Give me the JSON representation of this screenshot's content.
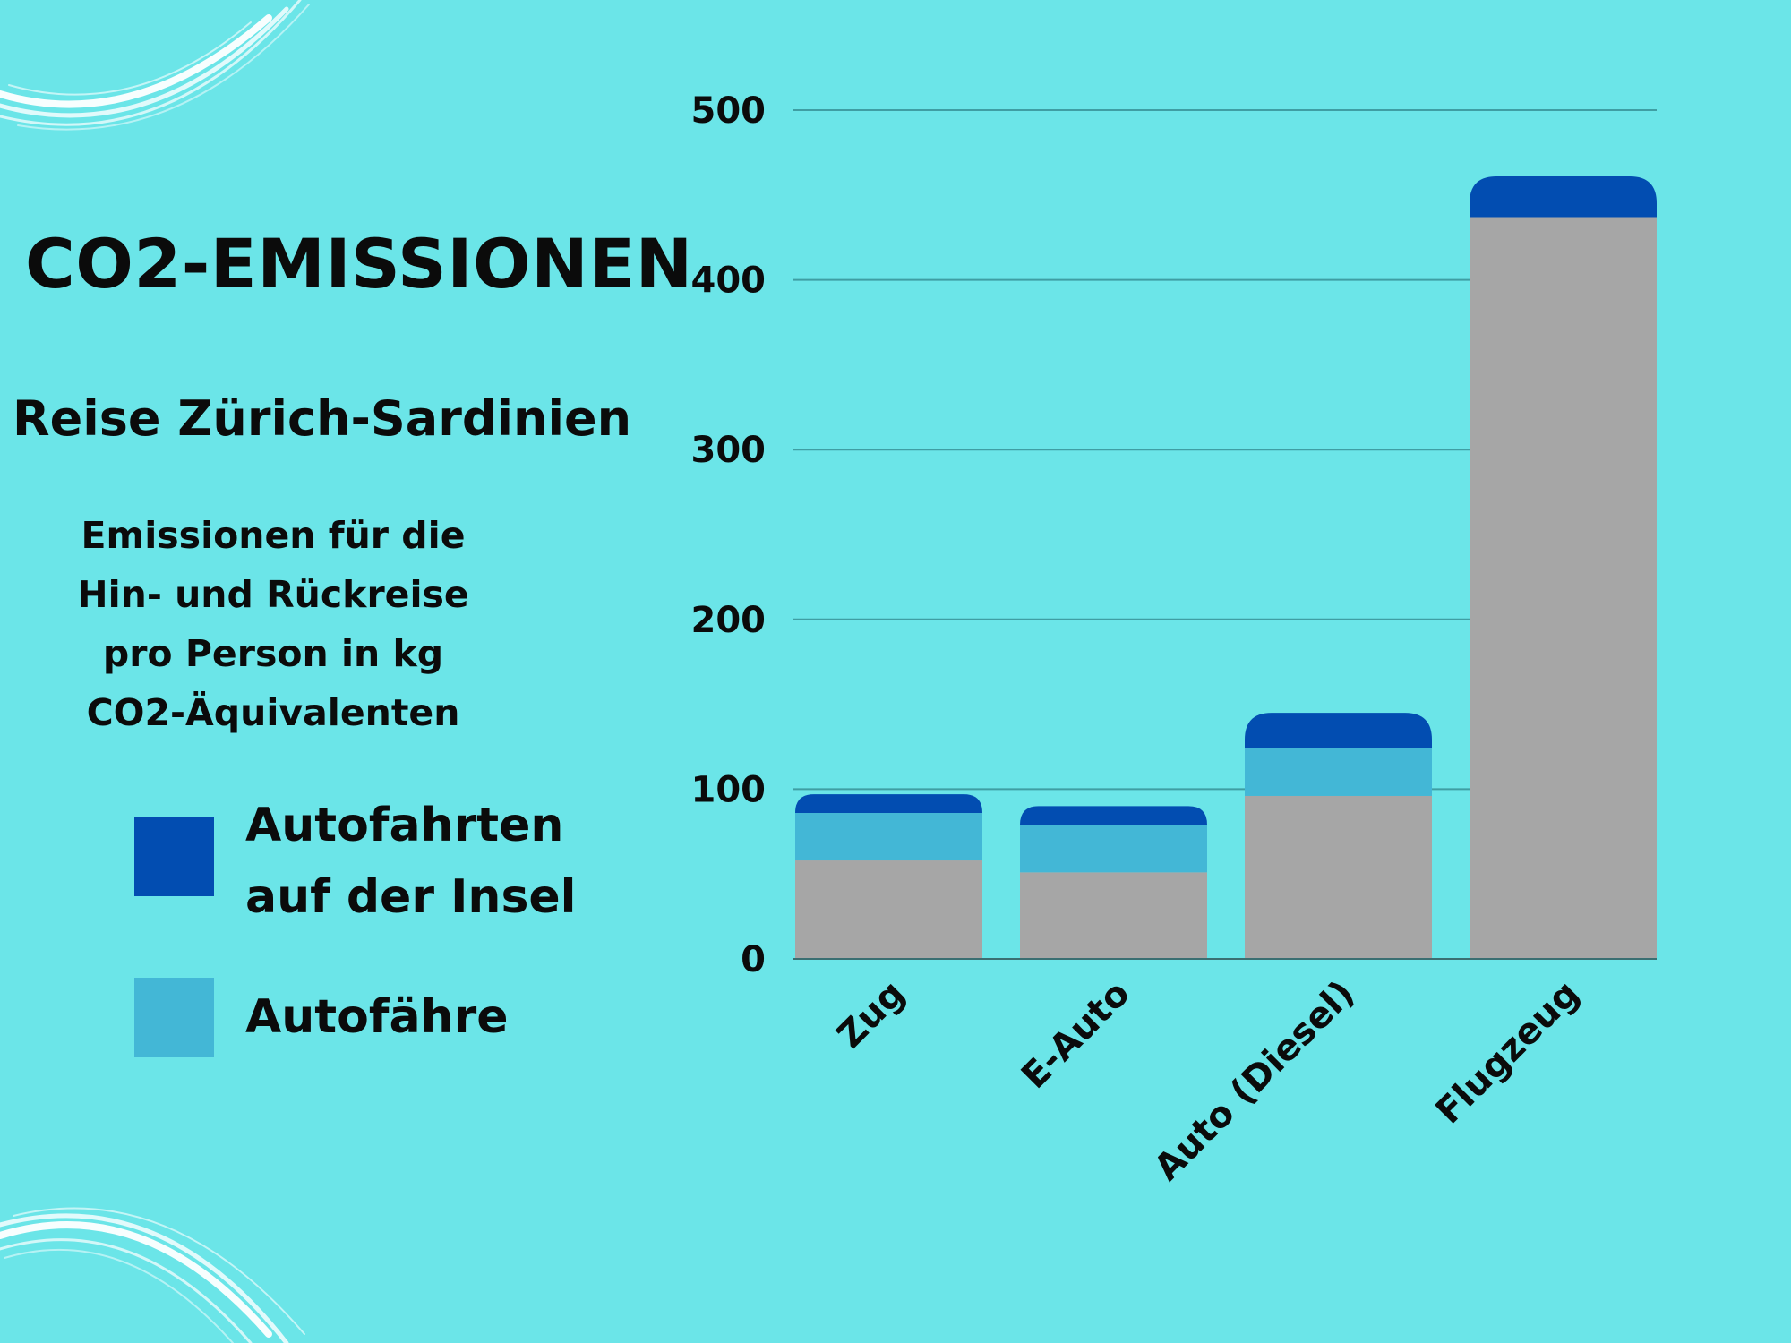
{
  "title": "CO2-EMISSIONEN",
  "subtitle": "Reise Zürich-Sardinien",
  "description_lines": [
    "Emissionen für die",
    "Hin- und Rückreise",
    "pro Person in kg",
    "CO2-Äquivalenten"
  ],
  "legend": [
    {
      "label_lines": [
        "Autofahrten",
        "auf der Insel"
      ],
      "color": "#024db1"
    },
    {
      "label_lines": [
        "Autofähre"
      ],
      "color": "#43b7d6"
    }
  ],
  "colors": {
    "background": "#6be5e8",
    "base": "#a6a6a6",
    "ferry": "#43b7d6",
    "island": "#024db1",
    "grid": "#3f9ea3",
    "deco": "#ffffff"
  },
  "chart_data": {
    "type": "bar",
    "stacked": true,
    "categories": [
      "Zug",
      "E-Auto",
      "Auto (Diesel)",
      "Flugzeug"
    ],
    "series": [
      {
        "values": [
          58,
          51,
          96,
          437
        ],
        "color": "#a6a6a6"
      },
      {
        "name": "Autofähre",
        "values": [
          28,
          28,
          28,
          0
        ],
        "color": "#43b7d6"
      },
      {
        "name": "Autofahrten auf der Insel",
        "values": [
          11,
          11,
          21,
          24
        ],
        "color": "#024db1"
      }
    ],
    "yticks": [
      0,
      100,
      200,
      300,
      400,
      500
    ],
    "ylim": [
      0,
      500
    ],
    "grid": true,
    "xlabel": "",
    "ylabel": "",
    "legend_position": "left"
  }
}
